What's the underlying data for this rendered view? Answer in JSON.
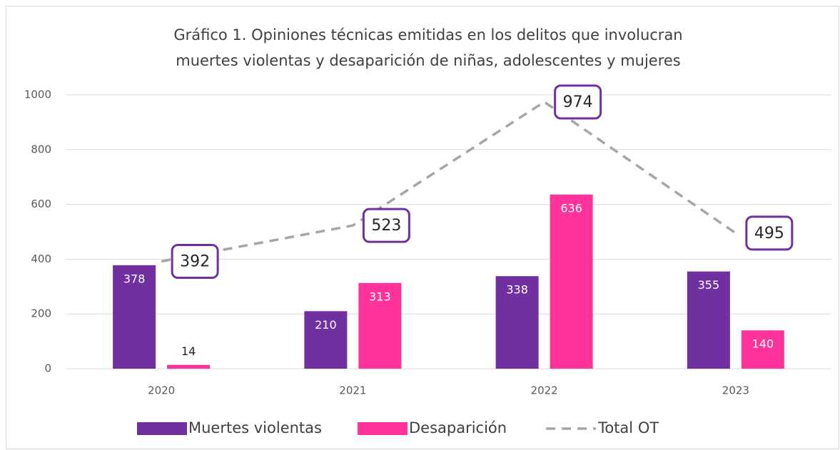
{
  "chart_data": {
    "type": "bar-line",
    "title": [
      "Gráfico 1. Opiniones técnicas emitidas en los delitos que involucran",
      "muertes violentas y desaparición de niñas, adolescentes y mujeres"
    ],
    "categories": [
      "2020",
      "2021",
      "2022",
      "2023"
    ],
    "series": [
      {
        "name": "Muertes violentas",
        "color": "#7030a0",
        "kind": "bar",
        "values": [
          378,
          210,
          338,
          355
        ]
      },
      {
        "name": "Desaparición",
        "color": "#ff3399",
        "kind": "bar",
        "values": [
          14,
          313,
          636,
          140
        ]
      },
      {
        "name": "Total OT",
        "color": "#a6a6a6",
        "kind": "line",
        "dashed": true,
        "label_box_color": "#7030a0",
        "values": [
          392,
          523,
          974,
          495
        ]
      }
    ],
    "ylim": [
      0,
      1000
    ],
    "yticks": [
      0,
      200,
      400,
      600,
      800,
      1000
    ],
    "grid": true,
    "legend": "bottom"
  }
}
